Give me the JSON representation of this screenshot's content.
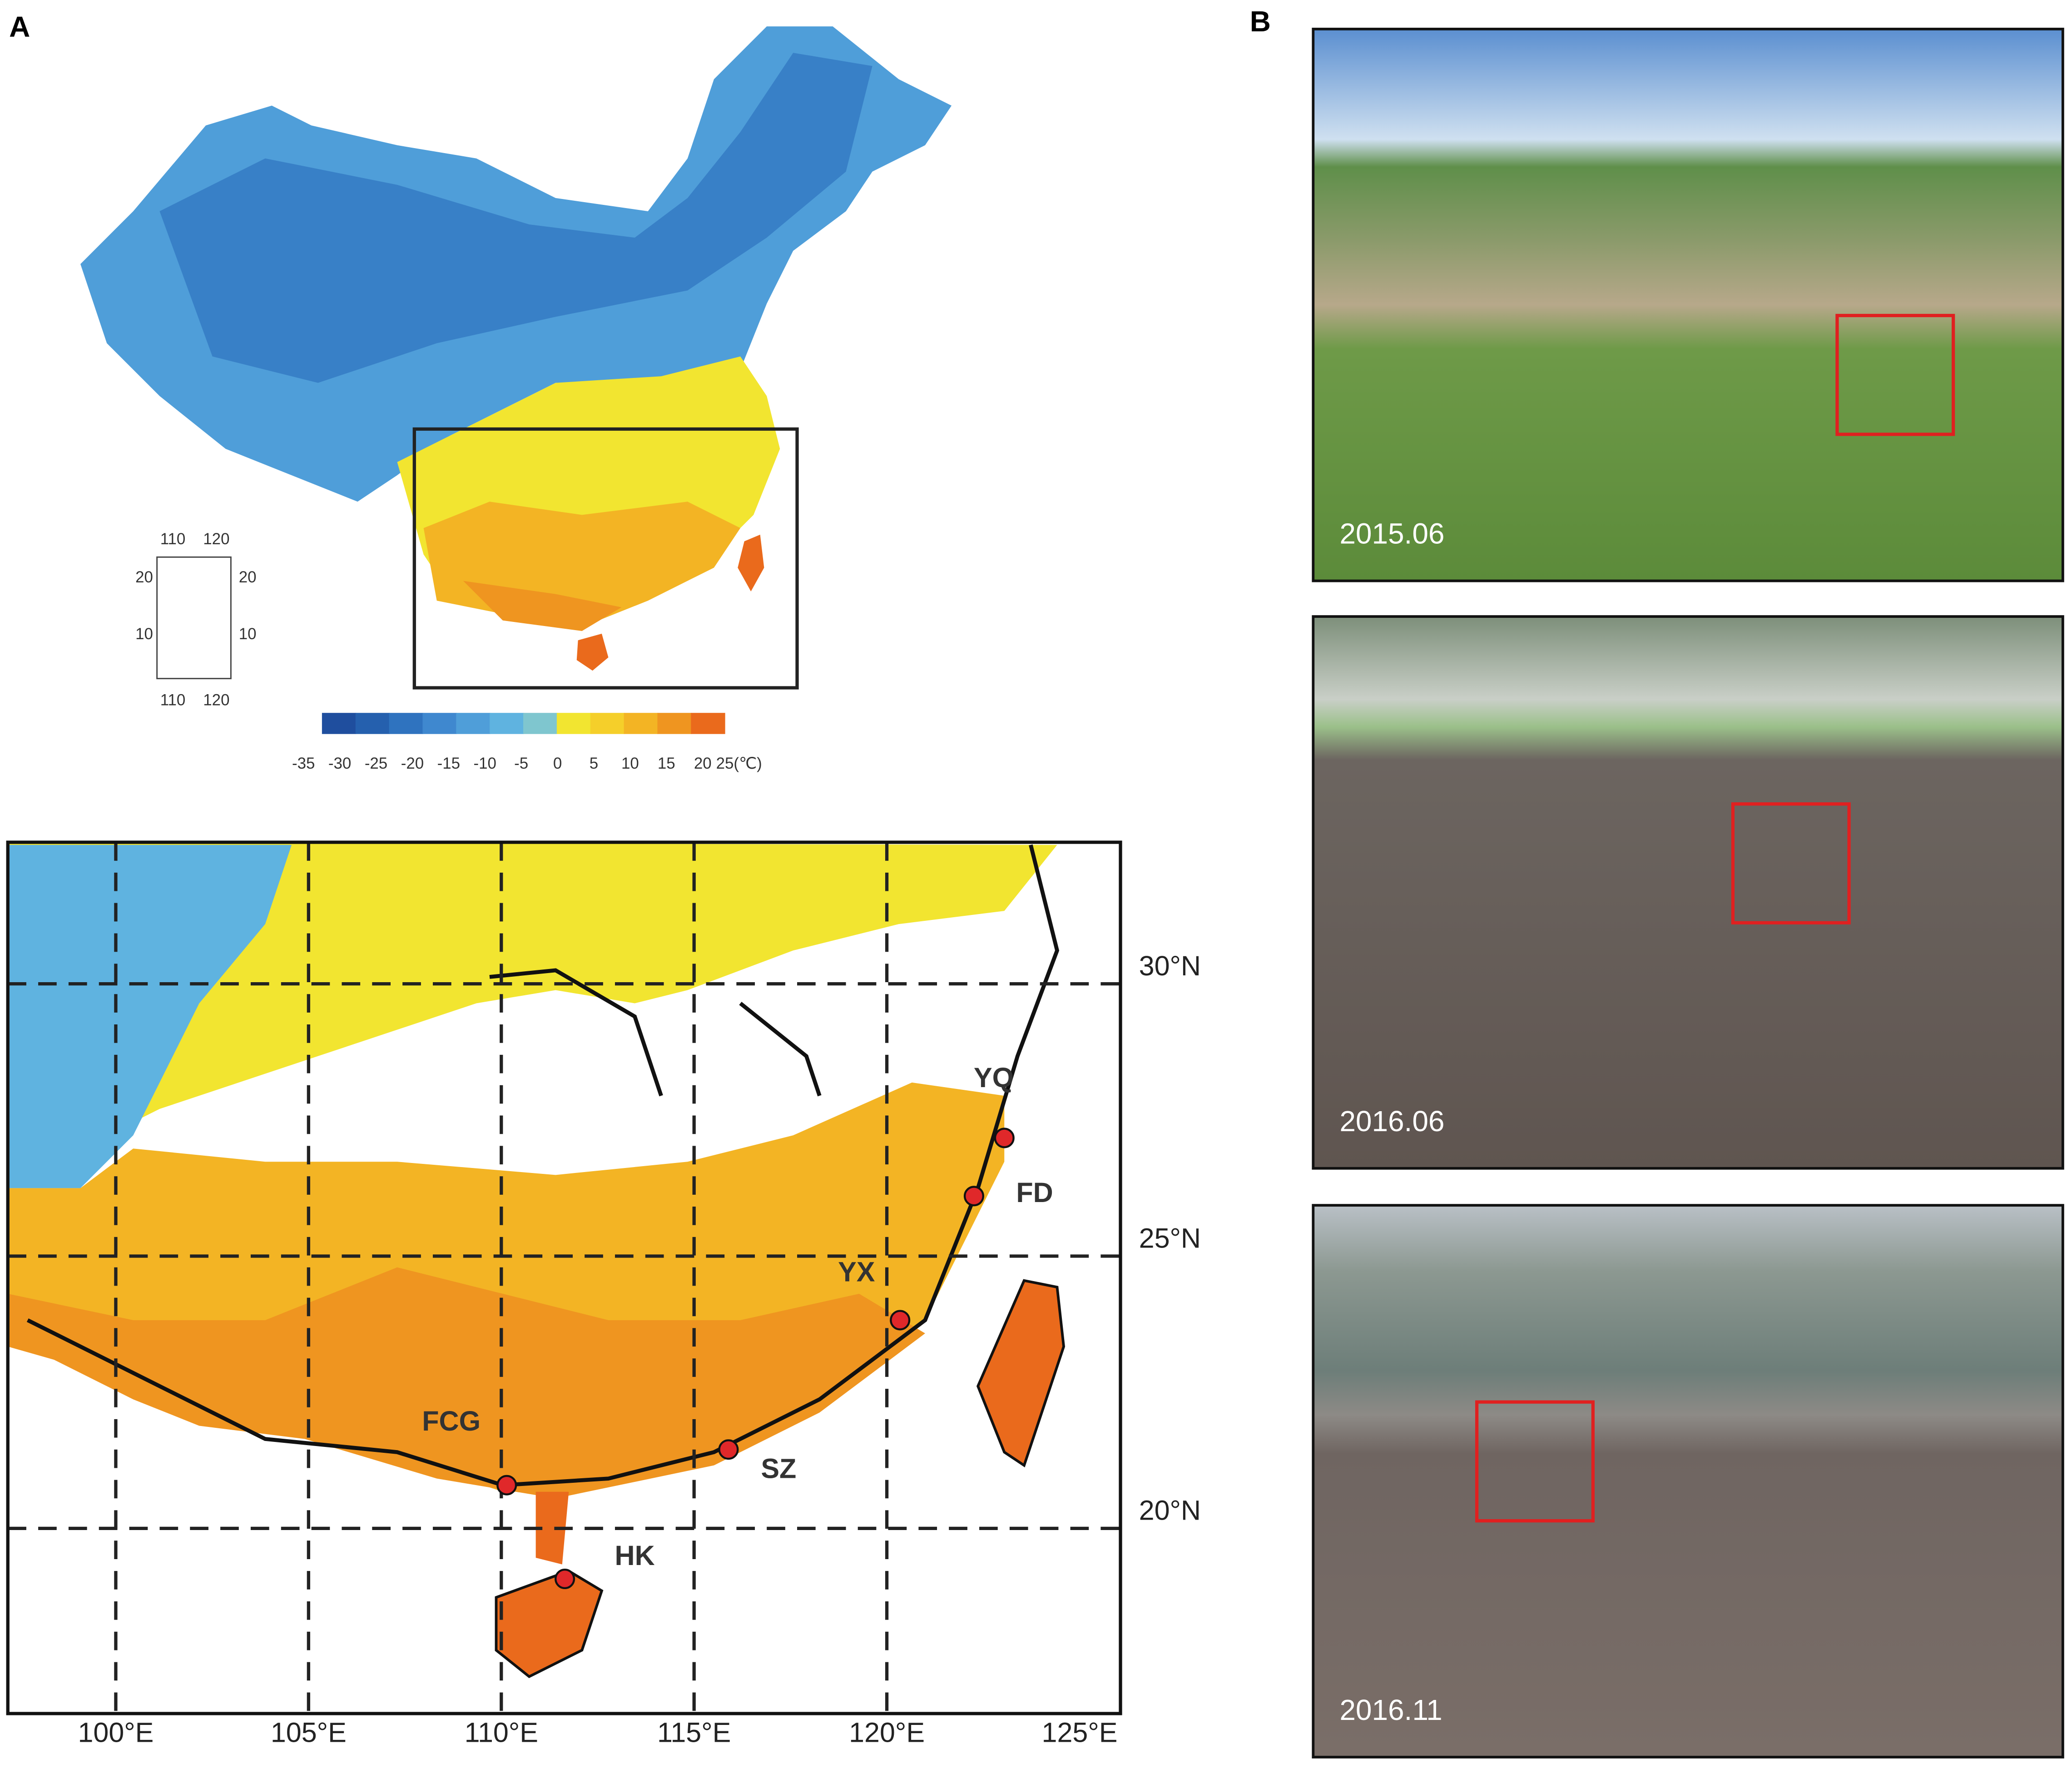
{
  "panel_a": {
    "label": "A",
    "inset": {
      "top_ticks": [
        "110",
        "120"
      ],
      "bottom_ticks": [
        "110",
        "120"
      ],
      "left_ticks": [
        "20",
        "10"
      ],
      "right_ticks": [
        "20",
        "10"
      ]
    },
    "colorbar": {
      "colors": [
        "#1f4e9e",
        "#2560ae",
        "#2f73bf",
        "#3f88cf",
        "#4f9ed9",
        "#5fb3e0",
        "#7fc6cf",
        "#f2e530",
        "#f5cf2a",
        "#f3b424",
        "#ef9520",
        "#ea6a1c"
      ],
      "ticks": [
        "-35",
        "-30",
        "-25",
        "-20",
        "-15",
        "-10",
        "-5",
        "0",
        "5",
        "10",
        "15",
        "20",
        "25(℃)"
      ]
    },
    "map": {
      "xlim": [
        97.2,
        126.06
      ],
      "ylim": [
        16.6,
        32.6
      ],
      "lon_ticks": [
        {
          "value": 100,
          "label": "100°E"
        },
        {
          "value": 105,
          "label": "105°E"
        },
        {
          "value": 110,
          "label": "110°E"
        },
        {
          "value": 115,
          "label": "115°E"
        },
        {
          "value": 120,
          "label": "120°E"
        },
        {
          "value": 125,
          "label": "125°E"
        }
      ],
      "lat_ticks": [
        {
          "value": 20,
          "label": "20°N"
        },
        {
          "value": 25,
          "label": "25°N"
        },
        {
          "value": 30,
          "label": "30°N"
        }
      ],
      "sites": [
        {
          "label": "YQ"
        },
        {
          "label": "FD"
        },
        {
          "label": "YX"
        },
        {
          "label": "FCG"
        },
        {
          "label": "SZ"
        },
        {
          "label": "HK"
        }
      ]
    }
  },
  "panel_b": {
    "label": "B",
    "photos": [
      {
        "date": "2015.06"
      },
      {
        "date": "2016.06"
      },
      {
        "date": "2016.11"
      }
    ]
  }
}
